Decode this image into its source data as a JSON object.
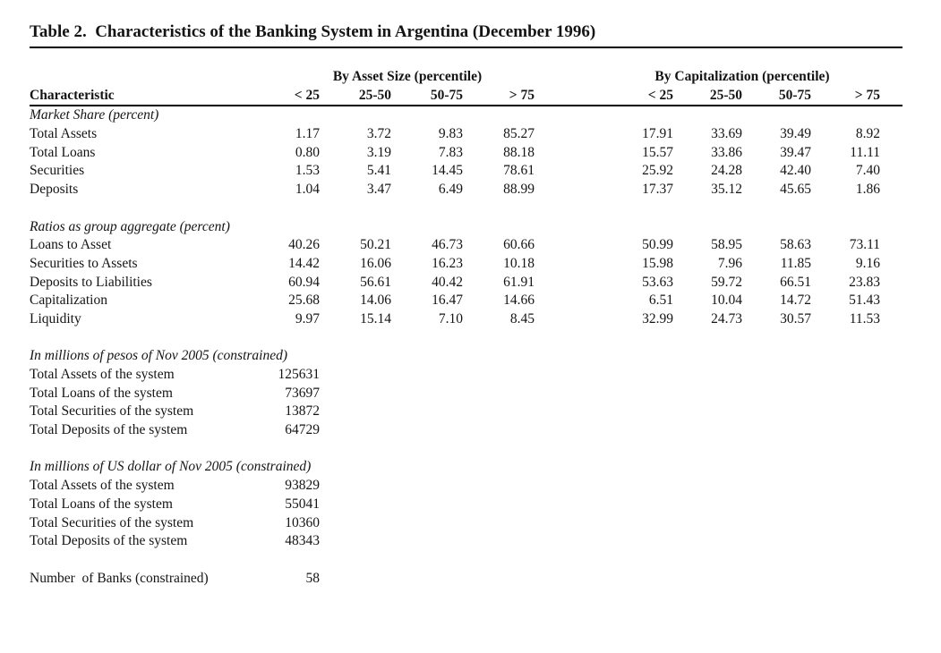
{
  "title": "Table 2.  Characteristics of the Banking System in Argentina (December 1996)",
  "table": {
    "group_headers": [
      {
        "label": "By Asset Size (percentile)"
      },
      {
        "label": "By Capitalization (percentile)"
      }
    ],
    "characteristic_header": "Characteristic",
    "col_headers": [
      "< 25",
      "25-50",
      "50-75",
      "> 75",
      "< 25",
      "25-50",
      "50-75",
      "> 75"
    ],
    "sections": [
      {
        "header": "Market Share (percent)",
        "rows": [
          {
            "label": "Total Assets",
            "values": [
              "1.17",
              "3.72",
              "9.83",
              "85.27",
              "17.91",
              "33.69",
              "39.49",
              "8.92"
            ]
          },
          {
            "label": "Total Loans",
            "values": [
              "0.80",
              "3.19",
              "7.83",
              "88.18",
              "15.57",
              "33.86",
              "39.47",
              "11.11"
            ]
          },
          {
            "label": "Securities",
            "values": [
              "1.53",
              "5.41",
              "14.45",
              "78.61",
              "25.92",
              "24.28",
              "42.40",
              "7.40"
            ]
          },
          {
            "label": "Deposits",
            "values": [
              "1.04",
              "3.47",
              "6.49",
              "88.99",
              "17.37",
              "35.12",
              "45.65",
              "1.86"
            ]
          }
        ]
      },
      {
        "header": "Ratios as group aggregate (percent)",
        "rows": [
          {
            "label": "Loans to Asset",
            "values": [
              "40.26",
              "50.21",
              "46.73",
              "60.66",
              "50.99",
              "58.95",
              "58.63",
              "73.11"
            ]
          },
          {
            "label": "Securities to Assets",
            "values": [
              "14.42",
              "16.06",
              "16.23",
              "10.18",
              "15.98",
              "7.96",
              "11.85",
              "9.16"
            ]
          },
          {
            "label": "Deposits to Liabilities",
            "values": [
              "60.94",
              "56.61",
              "40.42",
              "61.91",
              "53.63",
              "59.72",
              "66.51",
              "23.83"
            ]
          },
          {
            "label": "Capitalization",
            "values": [
              "25.68",
              "14.06",
              "16.47",
              "14.66",
              "6.51",
              "10.04",
              "14.72",
              "51.43"
            ]
          },
          {
            "label": "Liquidity",
            "values": [
              "9.97",
              "15.14",
              "7.10",
              "8.45",
              "32.99",
              "24.73",
              "30.57",
              "11.53"
            ]
          }
        ]
      }
    ]
  },
  "system_sections": [
    {
      "header": "In millions of pesos of Nov 2005 (constrained)",
      "rows": [
        {
          "label": "Total Assets of the system",
          "value": "125631"
        },
        {
          "label": "Total Loans of the system",
          "value": "73697"
        },
        {
          "label": "Total Securities of the system",
          "value": "13872"
        },
        {
          "label": "Total Deposits of the system",
          "value": "64729"
        }
      ]
    },
    {
      "header": "In millions of US dollar of Nov 2005 (constrained)",
      "rows": [
        {
          "label": "Total Assets of the system",
          "value": "93829"
        },
        {
          "label": "Total Loans of the system",
          "value": "55041"
        },
        {
          "label": "Total Securities of the system",
          "value": "10360"
        },
        {
          "label": "Total Deposits of the system",
          "value": "48343"
        }
      ]
    }
  ],
  "footer_row": {
    "label": "Number  of Banks (constrained)",
    "value": "58"
  },
  "colors": {
    "background": "#ffffff",
    "text": "#141414",
    "rule": "#000000"
  }
}
